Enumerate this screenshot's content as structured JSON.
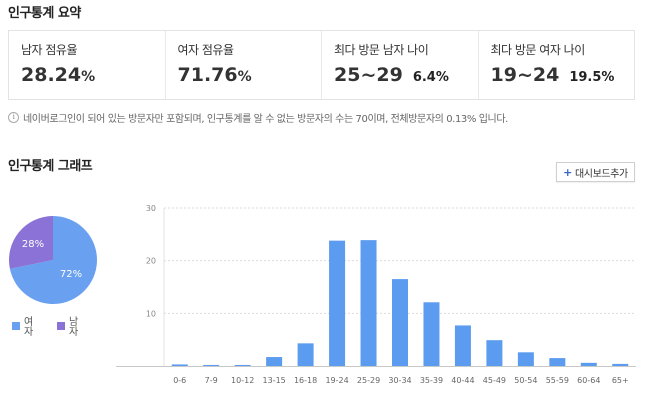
{
  "summary_title": "인구통계 요약",
  "summary": [
    {
      "label": "남자 점유율",
      "value": "28.24",
      "unit": "%"
    },
    {
      "label": "여자 점유율",
      "value": "71.76",
      "unit": "%"
    },
    {
      "label": "최다 방문 남자 나이",
      "value": "25~29",
      "sub": "6.4%"
    },
    {
      "label": "최다 방문 여자 나이",
      "value": "19~24",
      "sub": "19.5%"
    }
  ],
  "note": "네이버로그인이 되어 있는 방문자만 포함되며, 인구통계를 알 수 없는 방문자의 수는 70이며, 전체방문자의 0.13% 입니다.",
  "graph_title": "인구통계 그래프",
  "dashboard_button": "대시보드추가",
  "pie": {
    "female_pct": 71.76,
    "male_pct": 28.24,
    "female_label": "72%",
    "male_label": "28%",
    "female_color": "#6aa0f0",
    "male_color": "#8a72d6"
  },
  "legend": {
    "female": "여자",
    "male": "남자"
  },
  "chart_data": {
    "type": "bar",
    "categories": [
      "0-6",
      "7-9",
      "10-12",
      "13-15",
      "16-18",
      "19-24",
      "25-29",
      "30-34",
      "35-39",
      "40-44",
      "45-49",
      "50-54",
      "55-59",
      "60-64",
      "65+"
    ],
    "values": [
      0.3,
      0.2,
      0.2,
      1.7,
      4.3,
      23.8,
      23.9,
      16.5,
      12.1,
      7.7,
      4.9,
      2.6,
      1.5,
      0.6,
      0.4
    ],
    "ylim": [
      0,
      30
    ],
    "yticks": [
      "30",
      "20",
      "10"
    ],
    "ytick_values": [
      30,
      20,
      10
    ],
    "bar_color": "#5b9bf0",
    "grid": true
  }
}
